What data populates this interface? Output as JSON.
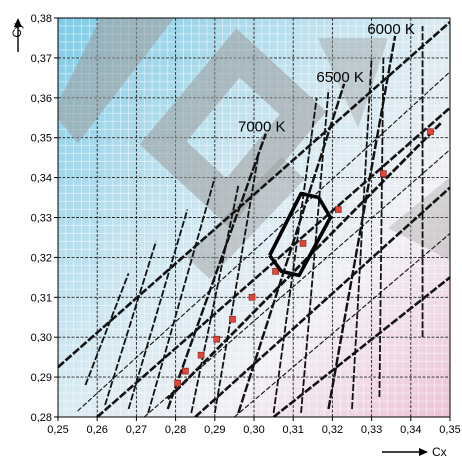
{
  "chart_data": {
    "type": "line",
    "title": "",
    "xlabel": "Cx",
    "ylabel": "Cy",
    "xlim": [
      0.25,
      0.35
    ],
    "ylim": [
      0.28,
      0.38
    ],
    "x_ticks": [
      "0,25",
      "0,26",
      "0,27",
      "0,28",
      "0,29",
      "0,30",
      "0,31",
      "0,32",
      "0,33",
      "0,34",
      "0,35"
    ],
    "y_ticks": [
      "0,28",
      "0,29",
      "0,30",
      "0,31",
      "0,32",
      "0,33",
      "0,34",
      "0,35",
      "0,36",
      "0,37",
      "0,38"
    ],
    "grid": true,
    "colors": {
      "background_blue": "#7fcbe6",
      "background_pink": "#eec2d6",
      "watermark": "#9a9a9a",
      "curve": "#111111",
      "marker": "#e0463a"
    },
    "band_edges": [
      {
        "x": [
          0.25,
          0.35
        ],
        "y": [
          0.2925,
          0.379
        ]
      },
      {
        "x": [
          0.26,
          0.35
        ],
        "y": [
          0.28,
          0.3575
        ]
      },
      {
        "x": [
          0.285,
          0.35
        ],
        "y": [
          0.28,
          0.3375
        ]
      },
      {
        "x": [
          0.305,
          0.35
        ],
        "y": [
          0.28,
          0.315
        ]
      }
    ],
    "thin_band_edges": [
      {
        "x": [
          0.255,
          0.35
        ],
        "y": [
          0.2815,
          0.3665
        ]
      },
      {
        "x": [
          0.272,
          0.35
        ],
        "y": [
          0.28,
          0.347
        ]
      },
      {
        "x": [
          0.295,
          0.35
        ],
        "y": [
          0.28,
          0.326
        ]
      }
    ],
    "planckian_locus": {
      "x": [
        0.278,
        0.348
      ],
      "y": [
        0.2845,
        0.354
      ]
    },
    "locus_points": {
      "x": [
        0.2805,
        0.2825,
        0.2865,
        0.2905,
        0.2945,
        0.2995,
        0.3055,
        0.3125,
        0.3215,
        0.333,
        0.345
      ],
      "y": [
        0.2885,
        0.2915,
        0.2955,
        0.2995,
        0.3045,
        0.31,
        0.3165,
        0.3235,
        0.332,
        0.341,
        0.3515
      ]
    },
    "isotherms": [
      {
        "label": "7000 K",
        "x": [
          0.278,
          0.303
        ],
        "y": [
          0.282,
          0.351
        ]
      },
      {
        "label": "6500 K",
        "x": [
          0.296,
          0.323
        ],
        "y": [
          0.281,
          0.3635
        ]
      },
      {
        "label": "6000 K",
        "x": [
          0.319,
          0.336
        ],
        "y": [
          0.282,
          0.3755
        ]
      }
    ],
    "minor_isotherms": [
      {
        "x": [
          0.257,
          0.268
        ],
        "y": [
          0.288,
          0.316
        ]
      },
      {
        "x": [
          0.262,
          0.275
        ],
        "y": [
          0.283,
          0.324
        ]
      },
      {
        "x": [
          0.268,
          0.283
        ],
        "y": [
          0.282,
          0.332
        ]
      },
      {
        "x": [
          0.273,
          0.29
        ],
        "y": [
          0.281,
          0.34
        ]
      },
      {
        "x": [
          0.284,
          0.296
        ],
        "y": [
          0.281,
          0.338
        ]
      },
      {
        "x": [
          0.29,
          0.301
        ],
        "y": [
          0.281,
          0.345
        ]
      },
      {
        "x": [
          0.305,
          0.316
        ],
        "y": [
          0.281,
          0.36
        ]
      },
      {
        "x": [
          0.312,
          0.319
        ],
        "y": [
          0.281,
          0.362
        ]
      },
      {
        "x": [
          0.325,
          0.33
        ],
        "y": [
          0.282,
          0.37
        ]
      },
      {
        "x": [
          0.332,
          0.333
        ],
        "y": [
          0.285,
          0.37
        ]
      },
      {
        "x": [
          0.343,
          0.343
        ],
        "y": [
          0.3,
          0.378
        ]
      }
    ],
    "tolerance_region": {
      "x": [
        0.304,
        0.312,
        0.3165,
        0.3195,
        0.3115,
        0.307,
        0.304
      ],
      "y": [
        0.3205,
        0.336,
        0.335,
        0.33,
        0.3155,
        0.3165,
        0.3205
      ]
    }
  }
}
